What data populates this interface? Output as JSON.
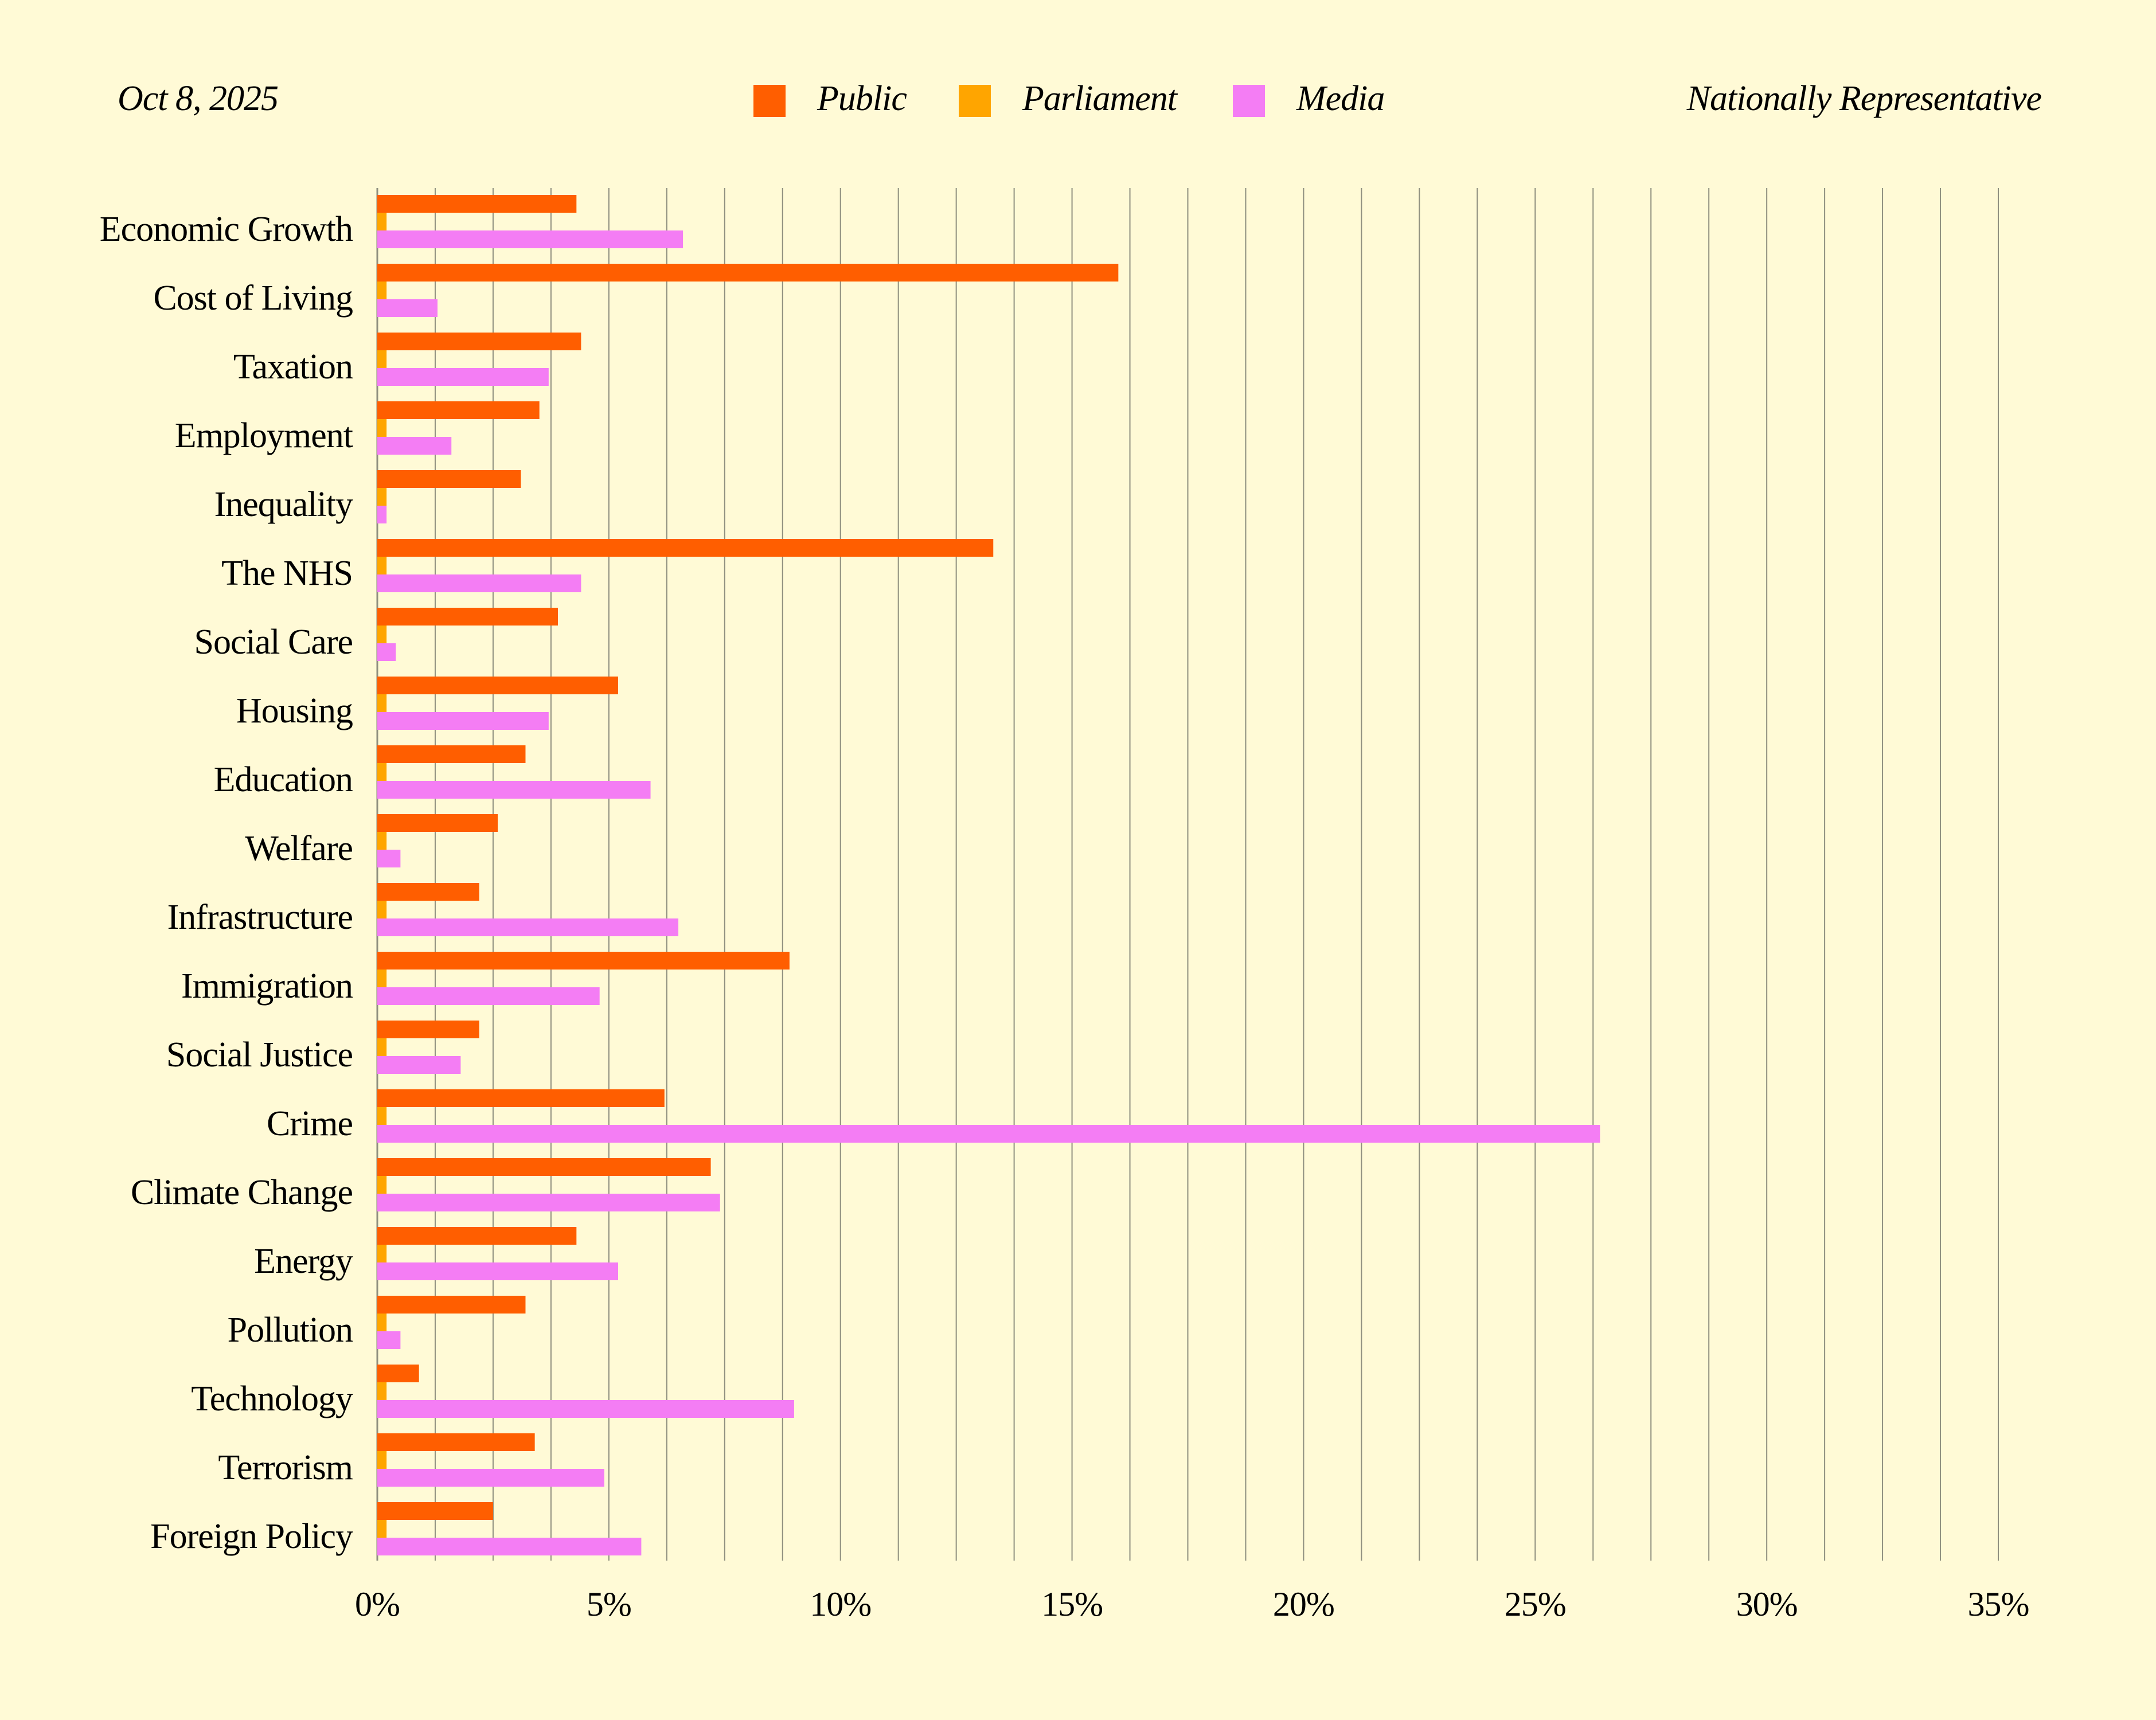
{
  "header": {
    "date": "Oct 8, 2025",
    "sample": "Nationally Representative"
  },
  "colors": {
    "background": "#fffad6",
    "grid": "#8f8f7f",
    "public": "#ff5e00",
    "parliament": "#ffa500",
    "media": "#f47df4"
  },
  "chart_data": {
    "type": "bar",
    "orientation": "horizontal",
    "categories": [
      "Economic Growth",
      "Cost of Living",
      "Taxation",
      "Employment",
      "Inequality",
      "The NHS",
      "Social Care",
      "Housing",
      "Education",
      "Welfare",
      "Infrastructure",
      "Immigration",
      "Social Justice",
      "Crime",
      "Climate Change",
      "Energy",
      "Pollution",
      "Technology",
      "Terrorism",
      "Foreign Policy"
    ],
    "series": [
      {
        "name": "Public",
        "color": "#ff5e00",
        "values": [
          4.3,
          16.0,
          4.4,
          3.5,
          3.1,
          13.3,
          3.9,
          5.2,
          3.2,
          2.6,
          2.2,
          8.9,
          2.2,
          6.2,
          7.2,
          4.3,
          3.2,
          0.9,
          3.4,
          2.5
        ]
      },
      {
        "name": "Parliament",
        "color": "#ffa500",
        "values": [
          0.2,
          0.2,
          0.2,
          0.2,
          0.2,
          0.2,
          0.2,
          0.2,
          0.2,
          0.2,
          0.2,
          0.2,
          0.2,
          0.2,
          0.2,
          0.2,
          0.2,
          0.2,
          0.2,
          0.2
        ]
      },
      {
        "name": "Media",
        "color": "#f47df4",
        "values": [
          6.6,
          1.3,
          3.7,
          1.6,
          0.2,
          4.4,
          0.4,
          3.7,
          5.9,
          0.5,
          6.5,
          4.8,
          1.8,
          26.4,
          7.4,
          5.2,
          0.5,
          9.0,
          4.9,
          5.7
        ]
      }
    ],
    "xlim": [
      0,
      35
    ],
    "xticks": [
      0,
      5,
      10,
      15,
      20,
      25,
      30,
      35
    ],
    "xtick_labels": [
      "0%",
      "5%",
      "10%",
      "15%",
      "20%",
      "25%",
      "30%",
      "35%"
    ],
    "legend_position": "top-center",
    "grid": "vertical"
  }
}
